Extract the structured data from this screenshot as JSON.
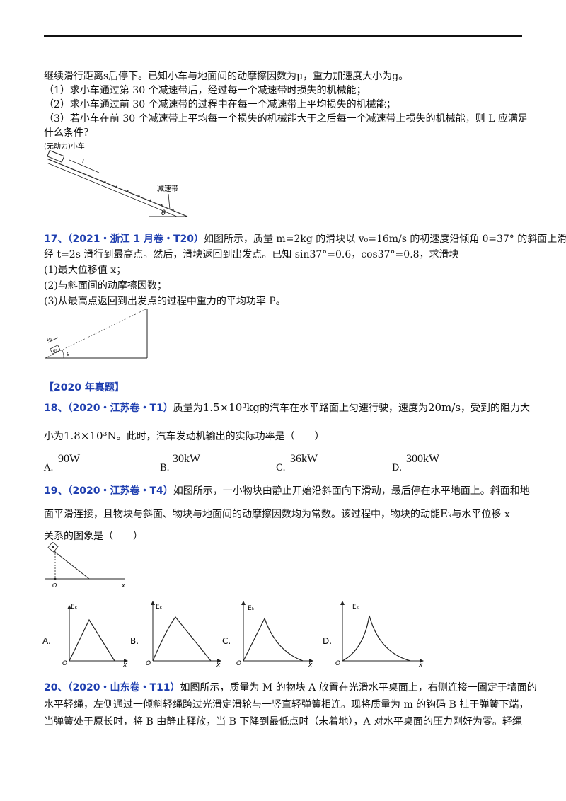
{
  "q16": {
    "intro": "继续滑行距离s后停下。已知小车与地面间的动摩擦因数为μ，重力加速度大小为g。",
    "sub1": "（1）求小车通过第 30 个减速带后，经过每一个减速带时损失的机械能；",
    "sub2": "（2）求小车通过前 30 个减速带的过程中在每一个减速带上平均损失的机械能；",
    "sub3a": "（3）若小车在前 30 个减速带上平均每一个损失的机械能大于之后每一个减速带上损失的机械能，则 L 应满足",
    "sub3b": "什么条件？",
    "fig_label_car": "(无动力)小车",
    "fig_label_L": "L",
    "fig_label_belt": "减速带",
    "fig_label_theta": "θ"
  },
  "q17": {
    "num": "17、",
    "src": "（2021・浙江 1 月卷・T20）",
    "line1": "如图所示，质量 m=2kg 的滑块以 v₀=16m/s 的初速度沿倾角 θ=37° 的斜面上滑，",
    "line2": "经 t=2s 滑行到最高点。然后，滑块返回到出发点。已知 sin37°=0.6，cos37°=0.8，求滑块",
    "sub1": "(1)最大位移值 x；",
    "sub2": "(2)与斜面间的动摩擦因数；",
    "sub3": "(3)从最高点返回到出发点的过程中重力的平均功率 P。",
    "fig_v0": "v₀",
    "fig_m": "m",
    "fig_theta": "θ"
  },
  "section": {
    "title": "【2020 年真题】"
  },
  "q18": {
    "num": "18、",
    "src": "（2020・江苏卷・T1）",
    "text_a": "质量为",
    "mass": "1.5×10³kg",
    "text_b": "的汽车在水平路面上匀速行驶，速度为",
    "speed": "20m/s",
    "text_c": "，受到的阻力大",
    "text_d": "小为",
    "force": "1.8×10³N",
    "text_e": "。此时，汽车发动机输出的实际功率是（　　）",
    "options": [
      {
        "label": "A.",
        "value": "90W"
      },
      {
        "label": "B.",
        "value": "30kW"
      },
      {
        "label": "C.",
        "value": "36kW"
      },
      {
        "label": "D.",
        "value": "300kW"
      }
    ]
  },
  "q19": {
    "num": "19、",
    "src": "（2020・江苏卷・T4）",
    "line1": "如图所示，一小物块由静止开始沿斜面向下滑动，最后停在水平地面上。斜面和地",
    "line2a": "面平滑连接，且物块与斜面、物块与地面间的动摩擦因数均为常数。该过程中，物块的动能",
    "ek": "Eₖ",
    "line2b": "与水平位移 x",
    "line3": "关系的图象是（　　）",
    "fig_o": "O",
    "fig_x": "x",
    "graph_ek": "Eₖ",
    "graph_o": "O",
    "graph_x": "x",
    "options": [
      "A.",
      "B.",
      "C.",
      "D."
    ]
  },
  "q20": {
    "num": "20、",
    "src": "（2020・山东卷・T11）",
    "line1": "如图所示，质量为 M 的物块 A 放置在光滑水平桌面上，右侧连接一固定于墙面的",
    "line2": "水平轻绳，左侧通过一倾斜轻绳跨过光滑定滑轮与一竖直轻弹簧相连。现将质量为 m 的钩码 B 挂于弹簧下端，",
    "line3": "当弹簧处于原长时，将 B 由静止释放，当 B 下降到最低点时（未着地），A 对水平桌面的压力刚好为零。轻绳"
  }
}
